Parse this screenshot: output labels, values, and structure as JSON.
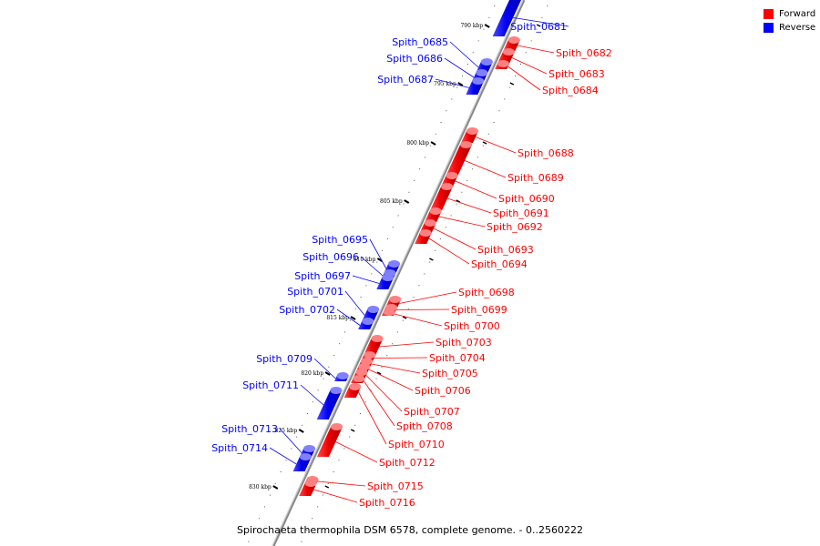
{
  "caption": "Spirochaeta thermophila DSM 6578, complete genome. - 0..2560222",
  "legend": {
    "forward_label": "Forward",
    "reverse_label": "Reverse",
    "forward_color": "#ff0000",
    "reverse_color": "#0000ff"
  },
  "scale_ticks": [
    {
      "label": "790 kbp",
      "kbp": 790
    },
    {
      "label": "795 kbp",
      "kbp": 795
    },
    {
      "label": "800 kbp",
      "kbp": 800
    },
    {
      "label": "805 kbp",
      "kbp": 805
    },
    {
      "label": "810 kbp",
      "kbp": 810
    },
    {
      "label": "815 kbp",
      "kbp": 815
    },
    {
      "label": "820 kbp",
      "kbp": 820
    },
    {
      "label": "825 kbp",
      "kbp": 825
    },
    {
      "label": "830 kbp",
      "kbp": 830
    }
  ],
  "genes": [
    {
      "name": "Spith_0681",
      "strand": "reverse"
    },
    {
      "name": "Spith_0682",
      "strand": "forward"
    },
    {
      "name": "Spith_0683",
      "strand": "forward"
    },
    {
      "name": "Spith_0684",
      "strand": "forward"
    },
    {
      "name": "Spith_0685",
      "strand": "reverse"
    },
    {
      "name": "Spith_0686",
      "strand": "reverse"
    },
    {
      "name": "Spith_0687",
      "strand": "reverse"
    },
    {
      "name": "Spith_0688",
      "strand": "forward"
    },
    {
      "name": "Spith_0689",
      "strand": "forward"
    },
    {
      "name": "Spith_0690",
      "strand": "forward"
    },
    {
      "name": "Spith_0691",
      "strand": "forward"
    },
    {
      "name": "Spith_0692",
      "strand": "forward"
    },
    {
      "name": "Spith_0693",
      "strand": "forward"
    },
    {
      "name": "Spith_0694",
      "strand": "forward"
    },
    {
      "name": "Spith_0695",
      "strand": "reverse"
    },
    {
      "name": "Spith_0696",
      "strand": "reverse"
    },
    {
      "name": "Spith_0697",
      "strand": "reverse"
    },
    {
      "name": "Spith_0698",
      "strand": "forward"
    },
    {
      "name": "Spith_0699",
      "strand": "forward"
    },
    {
      "name": "Spith_0700",
      "strand": "forward"
    },
    {
      "name": "Spith_0701",
      "strand": "reverse"
    },
    {
      "name": "Spith_0702",
      "strand": "reverse"
    },
    {
      "name": "Spith_0703",
      "strand": "forward"
    },
    {
      "name": "Spith_0704",
      "strand": "forward"
    },
    {
      "name": "Spith_0705",
      "strand": "forward"
    },
    {
      "name": "Spith_0706",
      "strand": "forward"
    },
    {
      "name": "Spith_0707",
      "strand": "forward"
    },
    {
      "name": "Spith_0708",
      "strand": "forward"
    },
    {
      "name": "Spith_0709",
      "strand": "reverse"
    },
    {
      "name": "Spith_0710",
      "strand": "forward"
    },
    {
      "name": "Spith_0711",
      "strand": "reverse"
    },
    {
      "name": "Spith_0712",
      "strand": "forward"
    },
    {
      "name": "Spith_0713",
      "strand": "reverse"
    },
    {
      "name": "Spith_0714",
      "strand": "reverse"
    },
    {
      "name": "Spith_0715",
      "strand": "forward"
    },
    {
      "name": "Spith_0716",
      "strand": "forward"
    }
  ]
}
